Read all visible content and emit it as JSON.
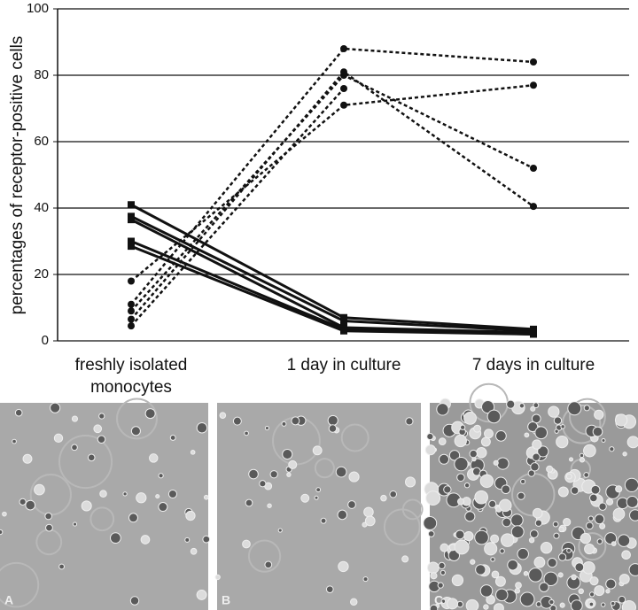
{
  "chart_data": {
    "type": "line",
    "ylabel": "percentages of receptor-positive cells",
    "categories": [
      "freshly isolated monocytes",
      "1 day in culture",
      "7 days in culture"
    ],
    "ylim": [
      0,
      100
    ],
    "yticks": [
      0,
      20,
      40,
      60,
      80,
      100
    ],
    "grid": true,
    "series": [
      {
        "color": "#111111",
        "style": "solid",
        "marker": "square",
        "values": [
          41,
          7,
          3.5
        ]
      },
      {
        "color": "#111111",
        "style": "solid",
        "marker": "square",
        "values": [
          37.5,
          6,
          3
        ]
      },
      {
        "color": "#111111",
        "style": "solid",
        "marker": "square",
        "values": [
          36.5,
          4,
          2.5
        ]
      },
      {
        "color": "#111111",
        "style": "solid",
        "marker": "square",
        "values": [
          30,
          3.5,
          2
        ]
      },
      {
        "color": "#111111",
        "style": "solid",
        "marker": "square",
        "values": [
          28.5,
          3,
          2
        ]
      },
      {
        "color": "#111111",
        "style": "dashed",
        "marker": "circle",
        "values": [
          11,
          88,
          84
        ]
      },
      {
        "color": "#111111",
        "style": "dashed",
        "marker": "circle",
        "values": [
          18,
          71,
          77
        ]
      },
      {
        "color": "#111111",
        "style": "dashed",
        "marker": "circle",
        "values": [
          9,
          80,
          52
        ]
      },
      {
        "color": "#111111",
        "style": "dashed",
        "marker": "circle",
        "values": [
          6.5,
          81,
          40.5
        ]
      },
      {
        "color": "#111111",
        "style": "dashed",
        "marker": "circle",
        "values": [
          4.5,
          76,
          null
        ]
      }
    ]
  },
  "panels": [
    "A",
    "B",
    "C"
  ]
}
